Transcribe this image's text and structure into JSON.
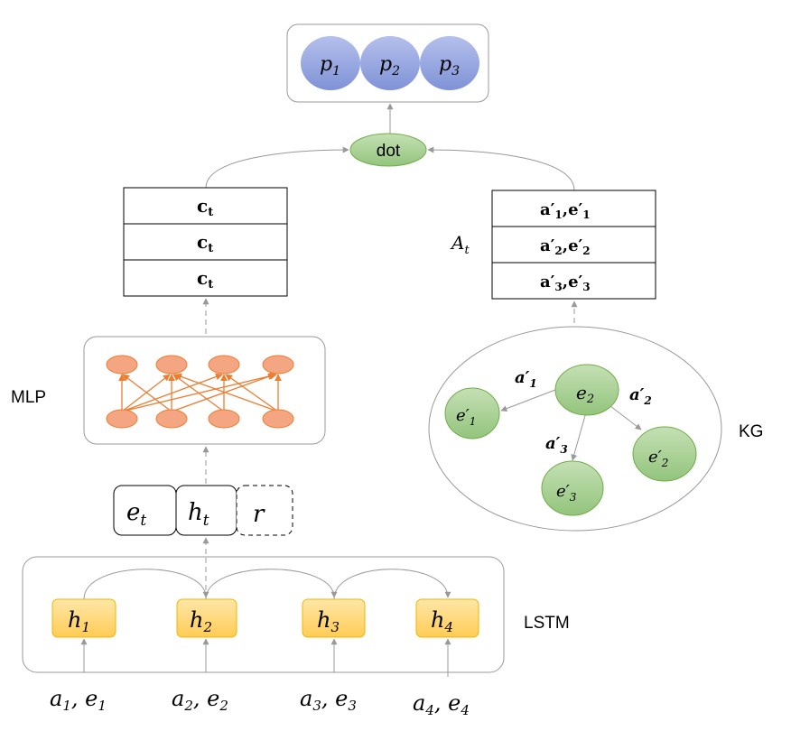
{
  "output": {
    "nodes": [
      {
        "base": "p",
        "sub": "1"
      },
      {
        "base": "p",
        "sub": "2"
      },
      {
        "base": "p",
        "sub": "3"
      }
    ]
  },
  "dot": {
    "label": "dot"
  },
  "context_table": {
    "rows": [
      {
        "base": "c",
        "sub": "t"
      },
      {
        "base": "c",
        "sub": "t"
      },
      {
        "base": "c",
        "sub": "t"
      }
    ]
  },
  "action_table": {
    "label": {
      "base": "A",
      "sub": "t"
    },
    "rows": [
      {
        "a": "a′",
        "as": "1",
        "e": "e′",
        "es": "1"
      },
      {
        "a": "a′",
        "as": "2",
        "e": "e′",
        "es": "2"
      },
      {
        "a": "a′",
        "as": "3",
        "e": "e′",
        "es": "3"
      }
    ]
  },
  "mlp": {
    "label": "MLP"
  },
  "kg": {
    "label": "KG",
    "center": {
      "base": "e",
      "sub": "2"
    },
    "neighbors": [
      {
        "base": "e′",
        "sub": "1"
      },
      {
        "base": "e′",
        "sub": "2"
      },
      {
        "base": "e′",
        "sub": "3"
      }
    ],
    "edges": [
      {
        "base": "a′",
        "sub": "1"
      },
      {
        "base": "a′",
        "sub": "2"
      },
      {
        "base": "a′",
        "sub": "3"
      }
    ]
  },
  "state": {
    "cells": [
      {
        "base": "e",
        "sub": "t"
      },
      {
        "base": "h",
        "sub": "t"
      },
      {
        "base": "r",
        "sub": ""
      }
    ]
  },
  "lstm": {
    "label": "LSTM",
    "cells": [
      {
        "base": "h",
        "sub": "1"
      },
      {
        "base": "h",
        "sub": "2"
      },
      {
        "base": "h",
        "sub": "3"
      },
      {
        "base": "h",
        "sub": "4"
      }
    ]
  },
  "inputs": [
    {
      "a": "a",
      "as": "1",
      "e": "e",
      "es": "1"
    },
    {
      "a": "a",
      "as": "2",
      "e": "e",
      "es": "2"
    },
    {
      "a": "a",
      "as": "3",
      "e": "e",
      "es": "3"
    },
    {
      "a": "a",
      "as": "4",
      "e": "e",
      "es": "4"
    }
  ],
  "colors": {
    "output_node": "#8fa0dc",
    "dot_node": "#a9d18e",
    "kg_node": "#a9d18e",
    "mlp_node": "#f4a582",
    "lstm_cell": "#ffd87a"
  }
}
